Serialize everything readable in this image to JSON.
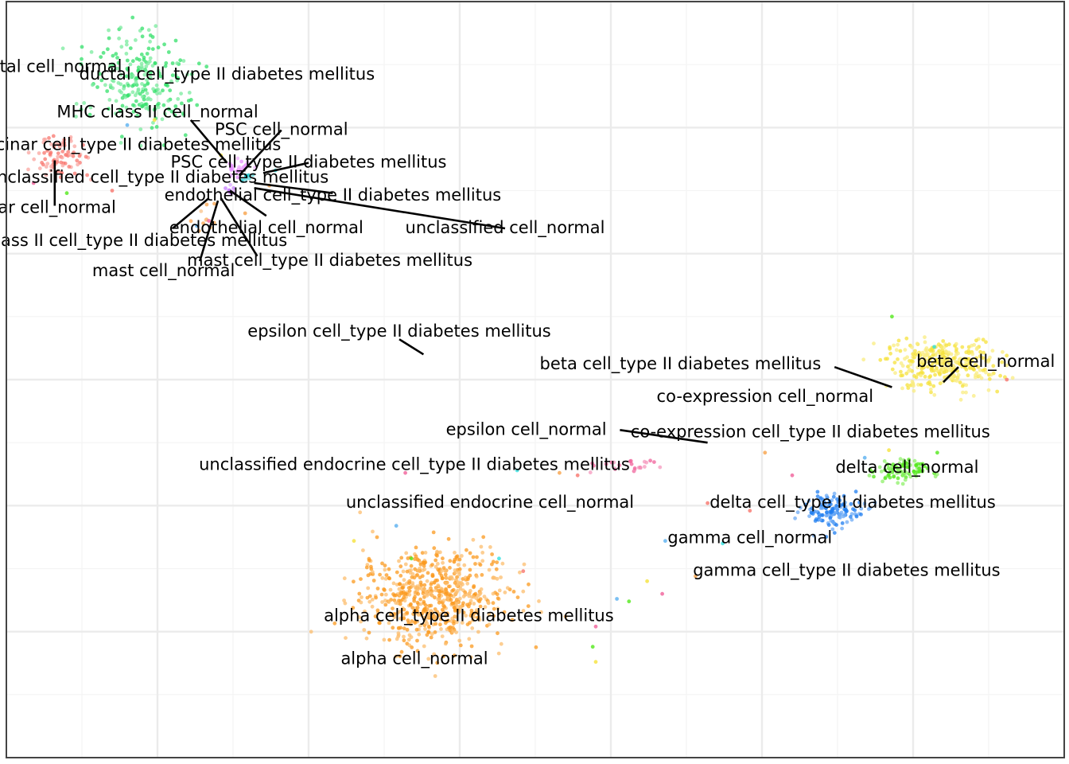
{
  "chart_data": {
    "type": "scatter",
    "title": "",
    "xlabel": "",
    "ylabel": "",
    "xlim": [
      -15,
      20
    ],
    "ylim": [
      -15,
      15
    ],
    "grid": true,
    "legend": "none",
    "clusters": [
      {
        "name": "ductal cell",
        "color": "#33e06a",
        "center": [
          -10.5,
          11.9
        ],
        "spread": [
          1.6,
          1.8
        ],
        "count": 230
      },
      {
        "name": "acinar cell",
        "color": "#f8766d",
        "center": [
          -13.2,
          8.8
        ],
        "spread": [
          0.9,
          0.8
        ],
        "count": 80
      },
      {
        "name": "PSC cell",
        "color": "#e68bff",
        "center": [
          -7.3,
          8.4
        ],
        "spread": [
          0.4,
          0.3
        ],
        "count": 25
      },
      {
        "name": "MHC class II cell",
        "color": "#c77cff",
        "center": [
          -7.6,
          7.6
        ],
        "spread": [
          0.2,
          0.2
        ],
        "count": 8
      },
      {
        "name": "endothelial cell",
        "color": "#00bfc4",
        "center": [
          -7.1,
          8.0
        ],
        "spread": [
          0.2,
          0.2
        ],
        "count": 8
      },
      {
        "name": "mast cell",
        "color": "#f8a24a",
        "center": [
          -8.4,
          6.5
        ],
        "spread": [
          0.5,
          0.8
        ],
        "count": 10
      },
      {
        "name": "beta cell",
        "color": "#f5e23b",
        "center": [
          16.0,
          0.6
        ],
        "spread": [
          1.6,
          0.9
        ],
        "count": 320
      },
      {
        "name": "delta cell",
        "color": "#52e81a",
        "center": [
          14.6,
          -3.6
        ],
        "spread": [
          0.8,
          0.4
        ],
        "count": 90
      },
      {
        "name": "gamma cell",
        "color": "#1f7ef0",
        "center": [
          12.3,
          -5.2
        ],
        "spread": [
          0.9,
          0.6
        ],
        "count": 130
      },
      {
        "name": "alpha cell",
        "color": "#fb9a1f",
        "center": [
          -0.9,
          -8.6
        ],
        "spread": [
          2.2,
          1.7
        ],
        "count": 650
      },
      {
        "name": "unclassified endocrine cell",
        "color": "#f0609a",
        "center": [
          5.5,
          -3.4
        ],
        "spread": [
          1.0,
          0.3
        ],
        "count": 25
      }
    ],
    "annotations": [
      {
        "text": "ductal cell_normal",
        "x": -13.7,
        "y": 12.4
      },
      {
        "text": "ductal cell_type II diabetes mellitus",
        "x": -7.7,
        "y": 12.1
      },
      {
        "text": "MHC class II cell_normal",
        "x": -10.0,
        "y": 10.6
      },
      {
        "text": "acinar cell_type II diabetes mellitus",
        "x": -10.8,
        "y": 9.3
      },
      {
        "text": "PSC cell_normal",
        "x": -5.9,
        "y": 9.9
      },
      {
        "text": "PSC cell_type II diabetes mellitus",
        "x": -5.0,
        "y": 8.6
      },
      {
        "text": "unclassified cell_type II diabetes mellitus",
        "x": -10.0,
        "y": 8.0
      },
      {
        "text": "endothelial cell_type II diabetes mellitus",
        "x": -4.2,
        "y": 7.3
      },
      {
        "text": "acinar cell_normal",
        "x": -13.9,
        "y": 6.8
      },
      {
        "text": "endothelial cell_normal",
        "x": -6.4,
        "y": 6.0
      },
      {
        "text": "unclassified cell_normal",
        "x": 1.5,
        "y": 6.0
      },
      {
        "text": "MHC class II cell_type II diabetes mellitus",
        "x": -11.4,
        "y": 5.5
      },
      {
        "text": "mast cell_type II diabetes mellitus",
        "x": -4.3,
        "y": 4.7
      },
      {
        "text": "mast cell_normal",
        "x": -9.8,
        "y": 4.3
      },
      {
        "text": "epsilon cell_type II diabetes mellitus",
        "x": -2.0,
        "y": 1.9
      },
      {
        "text": "beta cell_type II diabetes mellitus",
        "x": 7.3,
        "y": 0.6
      },
      {
        "text": "beta cell_normal",
        "x": 17.4,
        "y": 0.7
      },
      {
        "text": "co-expression cell_normal",
        "x": 10.1,
        "y": -0.7
      },
      {
        "text": "epsilon cell_normal",
        "x": 2.2,
        "y": -2.0
      },
      {
        "text": "co-expression cell_type II diabetes mellitus",
        "x": 11.6,
        "y": -2.1
      },
      {
        "text": "unclassified endocrine cell_type II diabetes mellitus",
        "x": -1.5,
        "y": -3.4
      },
      {
        "text": "delta cell_normal",
        "x": 14.8,
        "y": -3.5
      },
      {
        "text": "unclassified endocrine cell_normal",
        "x": 1.0,
        "y": -4.9
      },
      {
        "text": "delta cell_type II diabetes mellitus",
        "x": 13.0,
        "y": -4.9
      },
      {
        "text": "gamma cell_normal",
        "x": 9.6,
        "y": -6.3
      },
      {
        "text": "gamma cell_type II diabetes mellitus",
        "x": 12.8,
        "y": -7.6
      },
      {
        "text": "alpha cell_type II diabetes mellitus",
        "x": 0.3,
        "y": -9.4
      },
      {
        "text": "alpha cell_normal",
        "x": -1.5,
        "y": -11.1
      }
    ],
    "leaders": [
      {
        "from": [
          -8.9,
          10.3
        ],
        "to": [
          -7.7,
          8.6
        ]
      },
      {
        "from": [
          -5.9,
          9.9
        ],
        "to": [
          -7.3,
          8.1
        ]
      },
      {
        "from": [
          -5.0,
          8.6
        ],
        "to": [
          -6.5,
          8.2
        ]
      },
      {
        "from": [
          -4.2,
          7.4
        ],
        "to": [
          -6.8,
          7.8
        ]
      },
      {
        "from": [
          1.5,
          6.0
        ],
        "to": [
          -6.8,
          7.6
        ]
      },
      {
        "from": [
          -6.4,
          6.5
        ],
        "to": [
          -7.6,
          7.5
        ]
      },
      {
        "from": [
          -9.5,
          6.0
        ],
        "to": [
          -8.3,
          7.2
        ]
      },
      {
        "from": [
          -6.7,
          4.9
        ],
        "to": [
          -7.9,
          7.2
        ]
      },
      {
        "from": [
          -8.6,
          4.7
        ],
        "to": [
          -8.0,
          7.1
        ]
      },
      {
        "from": [
          -13.4,
          8.7
        ],
        "to": [
          -13.4,
          7.2
        ]
      },
      {
        "from": [
          -13.4,
          7.2
        ],
        "to": [
          -13.4,
          6.9
        ]
      },
      {
        "from": [
          -2.0,
          1.6
        ],
        "to": [
          -1.2,
          1.0
        ]
      },
      {
        "from": [
          12.4,
          0.5
        ],
        "to": [
          14.3,
          -0.3
        ]
      },
      {
        "from": [
          16.5,
          0.5
        ],
        "to": [
          16.0,
          -0.1
        ]
      },
      {
        "from": [
          5.3,
          -2.0
        ],
        "to": [
          8.2,
          -2.5
        ]
      }
    ],
    "stray_points": [
      [
        -7.1,
        6.6
      ],
      [
        -8.3,
        6.3
      ],
      [
        -8.7,
        6.1
      ],
      [
        -7.9,
        8.9
      ],
      [
        -13.0,
        7.4
      ],
      [
        -11.5,
        7.5
      ],
      [
        -6.1,
        8.3
      ],
      [
        -6.3,
        7.7
      ],
      [
        -14.1,
        7.8
      ],
      [
        -11.0,
        10.1
      ],
      [
        -10.1,
        10.3
      ],
      [
        14.3,
        2.5
      ],
      [
        18.1,
        0.0
      ],
      [
        15.7,
        1.3
      ],
      [
        10.1,
        -2.9
      ],
      [
        11.0,
        -3.8
      ],
      [
        13.4,
        -3.1
      ],
      [
        14.2,
        -2.8
      ],
      [
        15.8,
        -2.9
      ],
      [
        9.6,
        -5.2
      ],
      [
        8.7,
        -6.5
      ],
      [
        7.8,
        -7.8
      ],
      [
        6.7,
        -8.5
      ],
      [
        5.2,
        -8.7
      ],
      [
        4.5,
        -11.2
      ],
      [
        4.4,
        -10.6
      ],
      [
        2.1,
        -7.6
      ],
      [
        1.3,
        -7.1
      ],
      [
        3.5,
        -9.4
      ],
      [
        4.5,
        -9.8
      ],
      [
        -2.1,
        -5.8
      ],
      [
        -3.5,
        -6.4
      ],
      [
        -1.6,
        -7.1
      ],
      [
        3.9,
        -3.8
      ],
      [
        1.9,
        -3.6
      ],
      [
        3.3,
        -3.7
      ],
      [
        -1.8,
        -3.7
      ],
      [
        6.8,
        -6.4
      ],
      [
        6.2,
        -8.0
      ],
      [
        5.6,
        -8.8
      ],
      [
        8.2,
        -4.9
      ]
    ]
  }
}
